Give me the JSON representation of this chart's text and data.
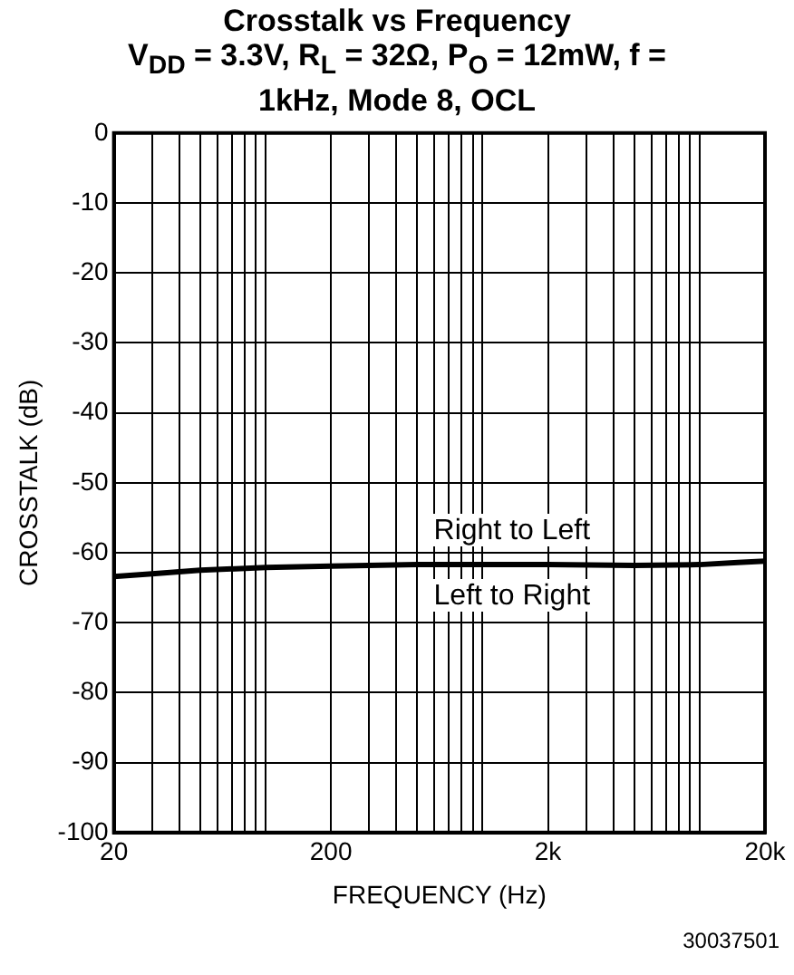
{
  "chart_data": {
    "type": "line",
    "title": "Crosstalk vs Frequency",
    "subtitle": "V$_{DD}$ = 3.3V, R$_{L}$ = 32Ω, P$_{O}$ = 12mW, f = 1kHz, Mode 8, OCL",
    "xlabel": "FREQUENCY (Hz)",
    "ylabel": "CROSSTALK (dB)",
    "annotations": [
      "Right to Left",
      "Left to Right",
      "30037501"
    ],
    "x": [
      20,
      30,
      50,
      100,
      200,
      500,
      1000,
      2000,
      5000,
      10000,
      15000,
      20000
    ],
    "series": [
      {
        "color": "#000000",
        "values": [
          -63.4,
          -63,
          -62.5,
          -62.1,
          -61.9,
          -61.7,
          -61.7,
          -61.7,
          -61.8,
          -61.7,
          -61.4,
          -61.2
        ]
      }
    ],
    "log": "x",
    "xlim": [
      20,
      20000
    ],
    "ylim": [
      -100,
      0
    ],
    "xticks": [
      {
        "value": 20,
        "label": "20"
      },
      {
        "value": 30,
        "label": null
      },
      {
        "value": 40,
        "label": null
      },
      {
        "value": 50,
        "label": null
      },
      {
        "value": 60,
        "label": null
      },
      {
        "value": 70,
        "label": null
      },
      {
        "value": 80,
        "label": null
      },
      {
        "value": 90,
        "label": null
      },
      {
        "value": 100,
        "label": null
      },
      {
        "value": 200,
        "label": "200"
      },
      {
        "value": 300,
        "label": null
      },
      {
        "value": 400,
        "label": null
      },
      {
        "value": 500,
        "label": null
      },
      {
        "value": 600,
        "label": null
      },
      {
        "value": 700,
        "label": null
      },
      {
        "value": 800,
        "label": null
      },
      {
        "value": 900,
        "label": null
      },
      {
        "value": 1000,
        "label": null
      },
      {
        "value": 2000,
        "label": "2k"
      },
      {
        "value": 3000,
        "label": null
      },
      {
        "value": 4000,
        "label": null
      },
      {
        "value": 5000,
        "label": null
      },
      {
        "value": 6000,
        "label": null
      },
      {
        "value": 7000,
        "label": null
      },
      {
        "value": 8000,
        "label": null
      },
      {
        "value": 9000,
        "label": null
      },
      {
        "value": 10000,
        "label": null
      },
      {
        "value": 20000,
        "label": "20k"
      }
    ],
    "yticks": [
      0,
      -10,
      -20,
      -30,
      -40,
      -50,
      -60,
      -70,
      -80,
      -90,
      -100
    ],
    "grid": true,
    "legend": false,
    "marker": "none",
    "line_style": "solid"
  }
}
